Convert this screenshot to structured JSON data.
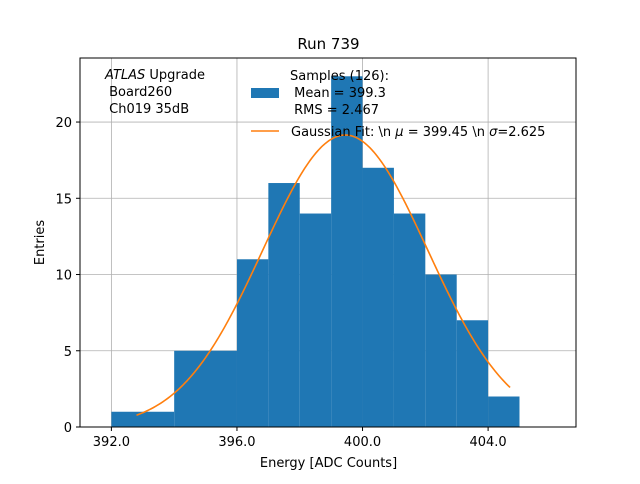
{
  "chart_data": {
    "type": "bar",
    "title": "Run 739",
    "xlabel": "Energy [ADC Counts]",
    "ylabel": "Entries",
    "xlim": [
      391.0,
      406.8
    ],
    "ylim": [
      0,
      24.2
    ],
    "x_ticks": [
      392.0,
      396.0,
      400.0,
      404.0
    ],
    "x_tick_labels": [
      "392.0",
      "396.0",
      "400.0",
      "404.0"
    ],
    "y_ticks": [
      0,
      5,
      10,
      15,
      20
    ],
    "y_tick_labels": [
      "0",
      "5",
      "10",
      "15",
      "20"
    ],
    "grid": true,
    "bin_edges": [
      392,
      394,
      396,
      397,
      398,
      399,
      400,
      401,
      402,
      403,
      404,
      405
    ],
    "counts": [
      1,
      5,
      11,
      16,
      14,
      23,
      17,
      14,
      10,
      7,
      2
    ],
    "bar_color": "#1f77b4",
    "fit": {
      "mu": 399.45,
      "sigma": 2.625,
      "x_range": [
        392.8,
        404.7
      ],
      "color": "#ff7f0e"
    },
    "annotation": {
      "atlas_italic": "ATLAS",
      "atlas_rest": " Upgrade",
      "line2": " Board260",
      "line3": " Ch019 35dB"
    },
    "legend": {
      "placement": "top-right",
      "samples_lines": [
        "Samples (126):",
        " Mean = 399.3",
        " RMS = 2.467"
      ],
      "fit_prefix": "Gaussian Fit: \\n ",
      "fit_mu_symbol": "μ",
      "fit_mid": " = 399.45 \\n ",
      "fit_sigma_symbol": "σ",
      "fit_suffix": "=2.625"
    }
  }
}
